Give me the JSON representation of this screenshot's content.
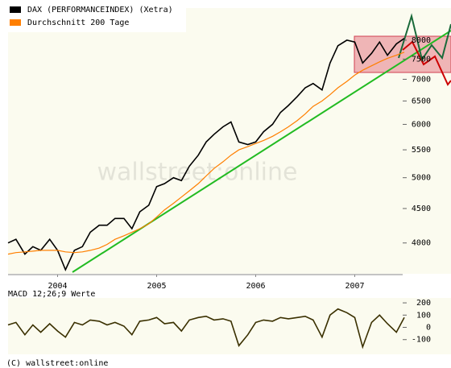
{
  "chart_data": [
    {
      "type": "line",
      "log_scale": true,
      "watermark": "wallstreet:online",
      "x": [
        2004.0,
        2004.08,
        2004.17,
        2004.25,
        2004.33,
        2004.42,
        2004.5,
        2004.58,
        2004.67,
        2004.75,
        2004.83,
        2004.92,
        2005.0,
        2005.08,
        2005.17,
        2005.25,
        2005.33,
        2005.42,
        2005.5,
        2005.58,
        2005.67,
        2005.75,
        2005.83,
        2005.92,
        2006.0,
        2006.08,
        2006.17,
        2006.25,
        2006.33,
        2006.42,
        2006.5,
        2006.58,
        2006.67,
        2006.75,
        2006.83,
        2006.92,
        2007.0,
        2007.08,
        2007.17,
        2007.25,
        2007.33,
        2007.42,
        2007.5,
        2007.58,
        2007.67,
        2007.75,
        2007.83,
        2007.92,
        2008.0
      ],
      "xlim": [
        2004,
        2008
      ],
      "xticks": [
        {
          "value": 2004.5,
          "label": "2004"
        },
        {
          "value": 2005.5,
          "label": "2005"
        },
        {
          "value": 2006.5,
          "label": "2006"
        },
        {
          "value": 2007.5,
          "label": "2007"
        }
      ],
      "ylim": [
        3600,
        8930
      ],
      "yticks": [
        4000,
        4500,
        5000,
        5500,
        6000,
        6500,
        7000,
        7500,
        8000
      ],
      "series": [
        {
          "name": "DAX (PERFORMANCEINDEX) (Xetra)",
          "color": "#000000",
          "values": [
            4000,
            4050,
            3850,
            3950,
            3900,
            4050,
            3900,
            3650,
            3900,
            3950,
            4150,
            4250,
            4250,
            4350,
            4350,
            4200,
            4450,
            4550,
            4850,
            4900,
            5000,
            4950,
            5200,
            5400,
            5650,
            5800,
            5950,
            6050,
            5650,
            5600,
            5650,
            5850,
            6000,
            6250,
            6400,
            6600,
            6800,
            6900,
            6750,
            7400,
            7850,
            8000,
            7950,
            7400,
            7650,
            7950,
            7600,
            7900,
            8050
          ]
        },
        {
          "name": "Durchschnitt 200 Tage",
          "color": "#ff7f00",
          "values": [
            3850,
            3870,
            3880,
            3890,
            3900,
            3900,
            3900,
            3880,
            3870,
            3880,
            3900,
            3930,
            3980,
            4050,
            4100,
            4150,
            4200,
            4270,
            4370,
            4480,
            4580,
            4680,
            4780,
            4900,
            5030,
            5160,
            5280,
            5400,
            5500,
            5560,
            5620,
            5680,
            5760,
            5850,
            5950,
            6080,
            6220,
            6380,
            6500,
            6640,
            6800,
            6950,
            7100,
            7220,
            7330,
            7430,
            7520,
            7600,
            7680
          ]
        }
      ]
    },
    {
      "type": "line",
      "title": "MACD 12;26;9 Werte",
      "x": [
        2004.0,
        2004.08,
        2004.17,
        2004.25,
        2004.33,
        2004.42,
        2004.5,
        2004.58,
        2004.67,
        2004.75,
        2004.83,
        2004.92,
        2005.0,
        2005.08,
        2005.17,
        2005.25,
        2005.33,
        2005.42,
        2005.5,
        2005.58,
        2005.67,
        2005.75,
        2005.83,
        2005.92,
        2006.0,
        2006.08,
        2006.17,
        2006.25,
        2006.33,
        2006.42,
        2006.5,
        2006.58,
        2006.67,
        2006.75,
        2006.83,
        2006.92,
        2007.0,
        2007.08,
        2007.17,
        2007.25,
        2007.33,
        2007.42,
        2007.5,
        2007.58,
        2007.67,
        2007.75,
        2007.83,
        2007.92,
        2008.0
      ],
      "xlim": [
        2004,
        2008
      ],
      "ylim": [
        -220,
        240
      ],
      "yticks": [
        -100,
        0,
        100,
        200
      ],
      "series": [
        {
          "color": "#3a3000",
          "values": [
            20,
            40,
            -60,
            20,
            -40,
            30,
            -30,
            -80,
            40,
            20,
            60,
            50,
            20,
            40,
            10,
            -60,
            50,
            60,
            80,
            30,
            40,
            -30,
            60,
            80,
            90,
            60,
            70,
            50,
            -150,
            -60,
            40,
            60,
            50,
            80,
            70,
            80,
            90,
            60,
            -80,
            100,
            150,
            120,
            80,
            -160,
            40,
            100,
            30,
            -40,
            80
          ]
        }
      ]
    }
  ],
  "footer": "(C) wallstreet:online"
}
